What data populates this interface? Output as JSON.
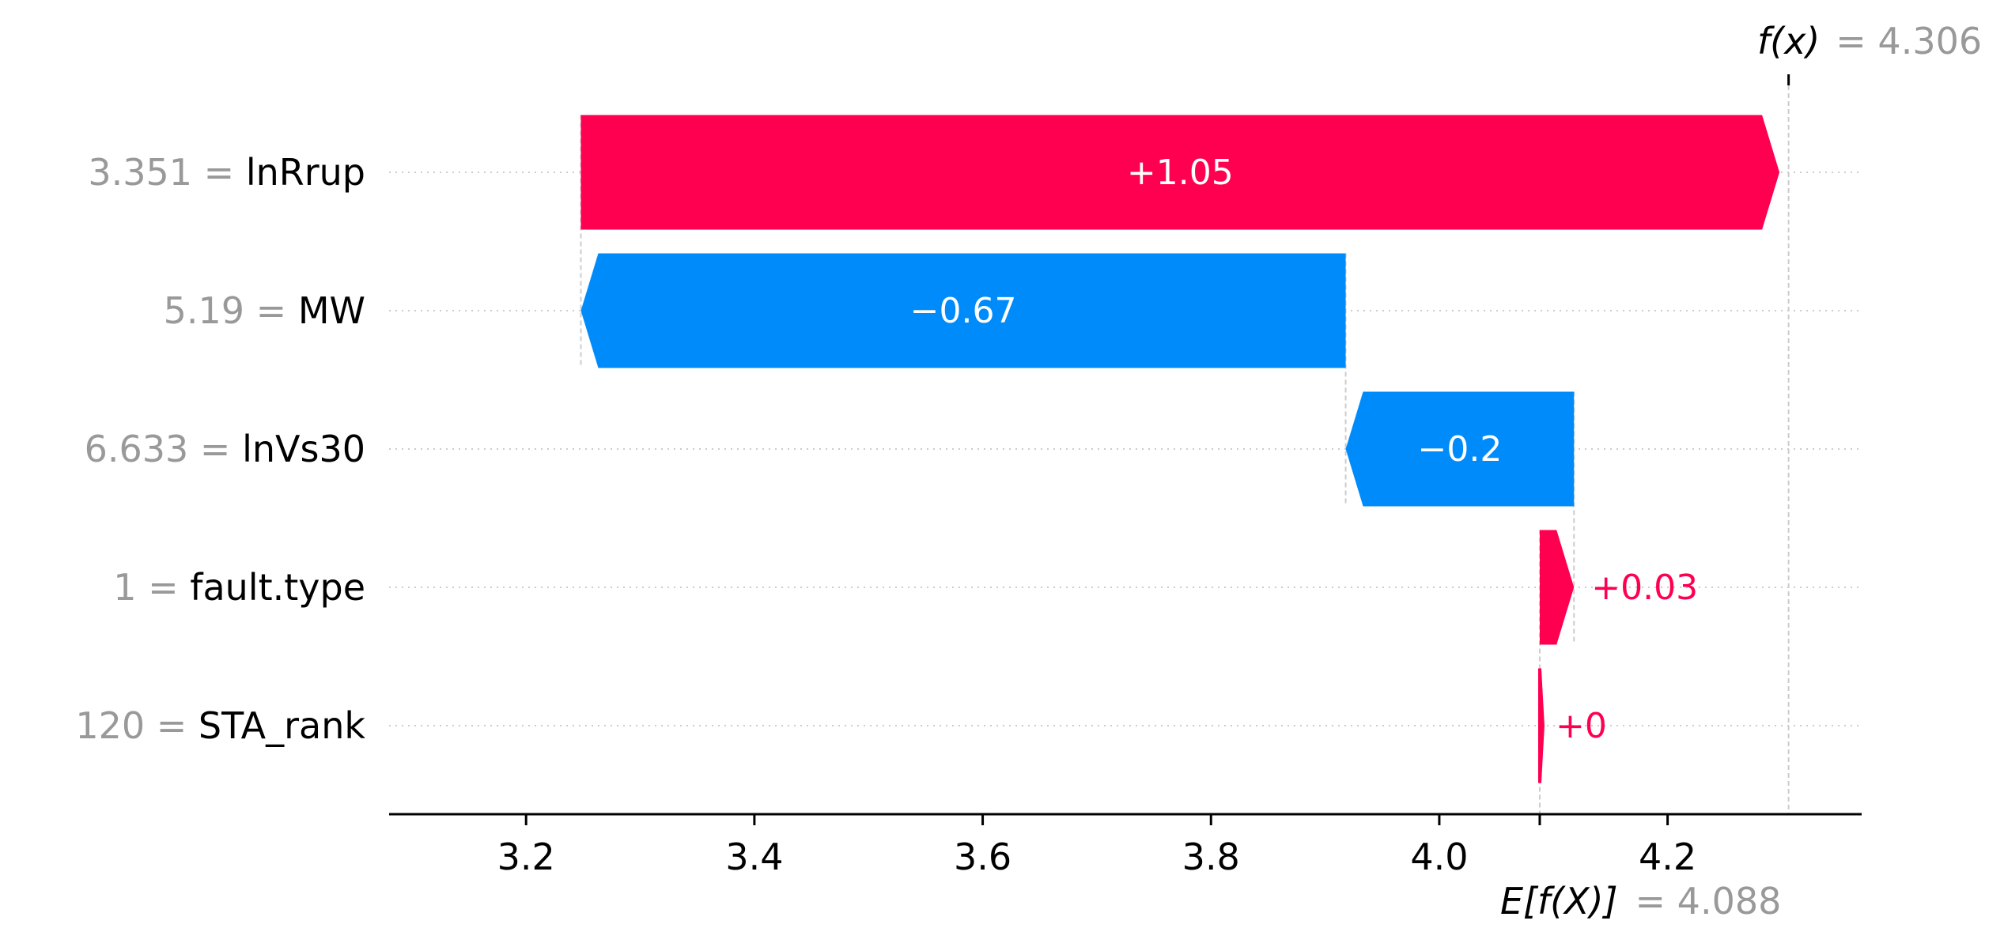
{
  "colors": {
    "positive": "#ff0051",
    "negative": "#008bfb",
    "axis": "#000000",
    "gridline": "#cccccc",
    "muted_text": "#999999"
  },
  "chart_data": {
    "type": "waterfall",
    "base_value": 4.088,
    "output_value": 4.306,
    "base_label": "E[f(X)]",
    "base_value_text": "= 4.088",
    "output_label": "f(x)",
    "output_value_text": "= 4.306",
    "xlim": [
      3.08,
      4.37
    ],
    "xticks": [
      3.2,
      3.4,
      3.6,
      3.8,
      4.0,
      4.2
    ],
    "xtick_labels": [
      "3.2",
      "3.4",
      "3.6",
      "3.8",
      "4.0",
      "4.2"
    ],
    "features": [
      {
        "name": "lnRrup",
        "value": "3.351",
        "contribution": 1.05,
        "label": "+1.05"
      },
      {
        "name": "MW",
        "value": "5.19",
        "contribution": -0.67,
        "label": "−0.67"
      },
      {
        "name": "lnVs30",
        "value": "6.633",
        "contribution": -0.2,
        "label": "−0.2"
      },
      {
        "name": "fault.type",
        "value": "1",
        "contribution": 0.03,
        "label": "+0.03"
      },
      {
        "name": "STA_rank",
        "value": "120",
        "contribution": 0.0,
        "label": "+0"
      }
    ]
  }
}
